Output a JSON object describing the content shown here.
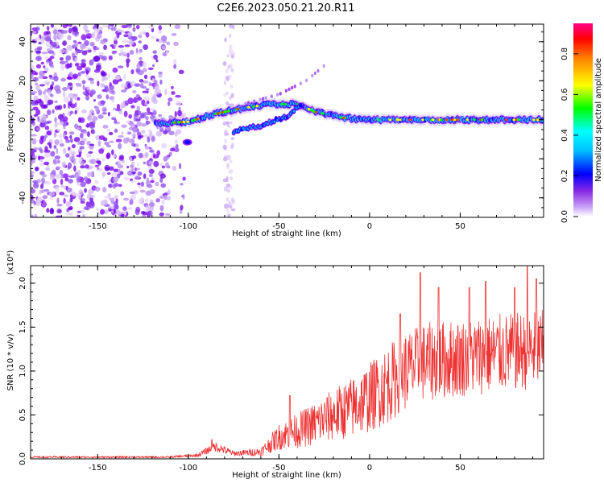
{
  "title": "C2E6.2023.050.21.20.R11",
  "chart_data": [
    {
      "type": "heatmap",
      "title": "",
      "xlabel": "Height of straight line (km)",
      "ylabel": "Frequency (Hz)",
      "xlim": [
        -187,
        96
      ],
      "ylim": [
        -50,
        49
      ],
      "xticks": [
        -150,
        -100,
        -50,
        0,
        50
      ],
      "yticks": [
        -40,
        -20,
        0,
        20,
        40
      ],
      "colorbar": {
        "label": "Normalized spectral amplitude",
        "range": [
          0.0,
          0.95
        ],
        "ticks": [
          0.0,
          0.2,
          0.4,
          0.6,
          0.8
        ],
        "colors": [
          "#ffffff",
          "#a020f0",
          "#0000ff",
          "#00ffff",
          "#00ff00",
          "#ffff00",
          "#ff0000",
          "#ff0088"
        ]
      },
      "features": [
        {
          "name": "noise-region",
          "x_range": [
            -187,
            -102
          ],
          "y_range": [
            -50,
            49
          ],
          "amplitude": 0.1
        },
        {
          "name": "vertical-streak",
          "x_range": [
            -80,
            -75
          ],
          "y_range": [
            -50,
            49
          ],
          "amplitude": 0.08
        },
        {
          "name": "main-track",
          "points": [
            [
              -118,
              -2
            ],
            [
              -100,
              -1
            ],
            [
              -85,
              3
            ],
            [
              -70,
              6
            ],
            [
              -55,
              8
            ],
            [
              -40,
              8
            ],
            [
              -30,
              4
            ],
            [
              -15,
              1
            ],
            [
              0,
              0
            ],
            [
              20,
              0
            ],
            [
              50,
              0
            ],
            [
              96,
              0
            ]
          ],
          "amplitude": 0.85
        },
        {
          "name": "lower-branch",
          "points": [
            [
              -75,
              -6
            ],
            [
              -60,
              -3
            ],
            [
              -45,
              2
            ],
            [
              -38,
              8
            ]
          ],
          "amplitude": 0.7
        },
        {
          "name": "upper-branch",
          "points": [
            [
              -70,
              8
            ],
            [
              -50,
              13
            ],
            [
              -35,
              20
            ],
            [
              -22,
              30
            ]
          ],
          "amplitude": 0.3
        },
        {
          "name": "blob",
          "points": [
            [
              -103,
              -11
            ],
            [
              -98,
              -12
            ]
          ],
          "amplitude": 0.4
        }
      ]
    },
    {
      "type": "line",
      "title": "",
      "xlabel": "Height of straight line (km)",
      "ylabel": "SNR (10 * v/v)",
      "yscale_label": "(x10⁴)",
      "xlim": [
        -187,
        96
      ],
      "ylim": [
        0,
        2.2
      ],
      "xticks": [
        -150,
        -100,
        -50,
        0,
        50
      ],
      "yticks": [
        0.0,
        0.5,
        1.0,
        1.5,
        2.0
      ],
      "ytick_labels": [
        "0.0",
        "0.5",
        "1.0",
        "1.5",
        "2.0"
      ],
      "series": [
        {
          "name": "SNR",
          "color": "#ee3333",
          "envelope": [
            {
              "x": -187,
              "mean": 0.02,
              "spread": 0.01
            },
            {
              "x": -110,
              "mean": 0.02,
              "spread": 0.01
            },
            {
              "x": -95,
              "mean": 0.04,
              "spread": 0.02
            },
            {
              "x": -85,
              "mean": 0.14,
              "spread": 0.06
            },
            {
              "x": -75,
              "mean": 0.06,
              "spread": 0.03
            },
            {
              "x": -60,
              "mean": 0.08,
              "spread": 0.05
            },
            {
              "x": -50,
              "mean": 0.25,
              "spread": 0.15
            },
            {
              "x": -40,
              "mean": 0.32,
              "spread": 0.2
            },
            {
              "x": -30,
              "mean": 0.4,
              "spread": 0.25
            },
            {
              "x": -20,
              "mean": 0.5,
              "spread": 0.3
            },
            {
              "x": -10,
              "mean": 0.58,
              "spread": 0.35
            },
            {
              "x": 0,
              "mean": 0.7,
              "spread": 0.4
            },
            {
              "x": 10,
              "mean": 0.85,
              "spread": 0.45
            },
            {
              "x": 20,
              "mean": 1.0,
              "spread": 0.45
            },
            {
              "x": 30,
              "mean": 1.1,
              "spread": 0.45
            },
            {
              "x": 50,
              "mean": 1.15,
              "spread": 0.45
            },
            {
              "x": 70,
              "mean": 1.2,
              "spread": 0.45
            },
            {
              "x": 96,
              "mean": 1.25,
              "spread": 0.45
            }
          ],
          "peaks": [
            [
              -87,
              0.22
            ],
            [
              -44,
              0.72
            ],
            [
              17,
              1.65
            ],
            [
              28,
              2.12
            ],
            [
              38,
              1.95
            ],
            [
              55,
              1.95
            ],
            [
              64,
              2.02
            ],
            [
              80,
              1.95
            ],
            [
              87,
              2.2
            ],
            [
              92,
              2.05
            ]
          ]
        }
      ]
    }
  ]
}
